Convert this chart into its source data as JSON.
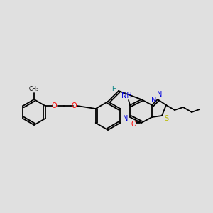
{
  "background_color": "#e0e0e0",
  "fig_width": 3.0,
  "fig_height": 3.0,
  "dpi": 100,
  "atom_colors": {
    "N": "#0000dd",
    "O": "#ff0000",
    "S": "#bbbb00",
    "C": "#000000",
    "H": "#008080"
  },
  "lw": 1.3,
  "fs": 7.0
}
